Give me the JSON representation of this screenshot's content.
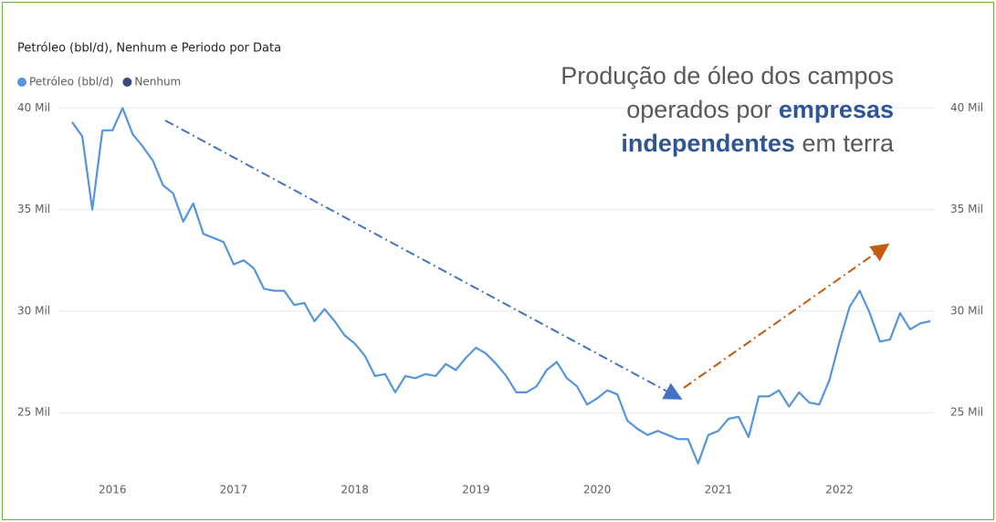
{
  "chart_data": {
    "type": "line",
    "title": "Petróleo (bbl/d), Nenhum e Periodo por Data",
    "annotation": {
      "line1": "Produção de óleo dos campos",
      "line2_a": "operados por",
      "line2_b": "empresas",
      "line3_a": "independentes",
      "line3_b": "em terra"
    },
    "categories": [
      null,
      null,
      null,
      null,
      "2016",
      null,
      null,
      null,
      null,
      null,
      null,
      null,
      null,
      null,
      null,
      null,
      "2017",
      null,
      null,
      null,
      null,
      null,
      null,
      null,
      null,
      null,
      null,
      null,
      "2018",
      null,
      null,
      null,
      null,
      null,
      null,
      null,
      null,
      null,
      null,
      null,
      "2019",
      null,
      null,
      null,
      null,
      null,
      null,
      null,
      null,
      null,
      null,
      null,
      "2020",
      null,
      null,
      null,
      null,
      null,
      null,
      null,
      null,
      null,
      null,
      null,
      "2021",
      null,
      null,
      null,
      null,
      null,
      null,
      null,
      null,
      null,
      null,
      null,
      "2022",
      null,
      null,
      null,
      null,
      null,
      null,
      null,
      null,
      null
    ],
    "series": [
      {
        "name": "Petróleo (bbl/d)",
        "color": "#5595dc",
        "values": [
          39300,
          38600,
          35000,
          38900,
          38900,
          40000,
          38700,
          38100,
          37400,
          36200,
          35800,
          34400,
          35300,
          33800,
          33600,
          33400,
          32300,
          32500,
          32100,
          31100,
          31000,
          31000,
          30300,
          30400,
          29500,
          30100,
          29500,
          28800,
          28400,
          27800,
          26800,
          26900,
          26000,
          26800,
          26700,
          26900,
          26800,
          27400,
          27100,
          27700,
          28200,
          27900,
          27400,
          26800,
          26000,
          26000,
          26300,
          27100,
          27500,
          26700,
          26300,
          25400,
          25700,
          26100,
          25900,
          24600,
          24200,
          23900,
          24100,
          23900,
          23700,
          23700,
          22500,
          23900,
          24100,
          24700,
          24800,
          23800,
          25800,
          25800,
          26100,
          25300,
          26000,
          25500,
          25400,
          26600,
          28500,
          30200,
          31000,
          29900,
          28500,
          28600,
          29900,
          29100,
          29400,
          29500
        ]
      },
      {
        "name": "Nenhum",
        "color": "#3a4a7d",
        "values": [
          null,
          null,
          null,
          null,
          null,
          null,
          null,
          null,
          null,
          null,
          null,
          null,
          null,
          null,
          null,
          null,
          null,
          null,
          null,
          null,
          null,
          null,
          null,
          null,
          null,
          null,
          null,
          null,
          null,
          null,
          null,
          null,
          null,
          null,
          null,
          null,
          null,
          null,
          null,
          null,
          null,
          null,
          null,
          null,
          null,
          null,
          null,
          null,
          null,
          null,
          null,
          null,
          null,
          null,
          null,
          null,
          null,
          null,
          null,
          null,
          null,
          null,
          null,
          null,
          null,
          null,
          null,
          null,
          null,
          null,
          null,
          null,
          null,
          null,
          null,
          null,
          null,
          null,
          null,
          null,
          null,
          null,
          null,
          null,
          null,
          null
        ]
      }
    ],
    "ylim": [
      22000,
      41000
    ],
    "yticks": [
      {
        "value": 25000,
        "label": "25 Mil"
      },
      {
        "value": 30000,
        "label": "30 Mil"
      },
      {
        "value": 35000,
        "label": "35 Mil"
      },
      {
        "value": 40000,
        "label": "40 Mil"
      }
    ],
    "grid": true
  }
}
